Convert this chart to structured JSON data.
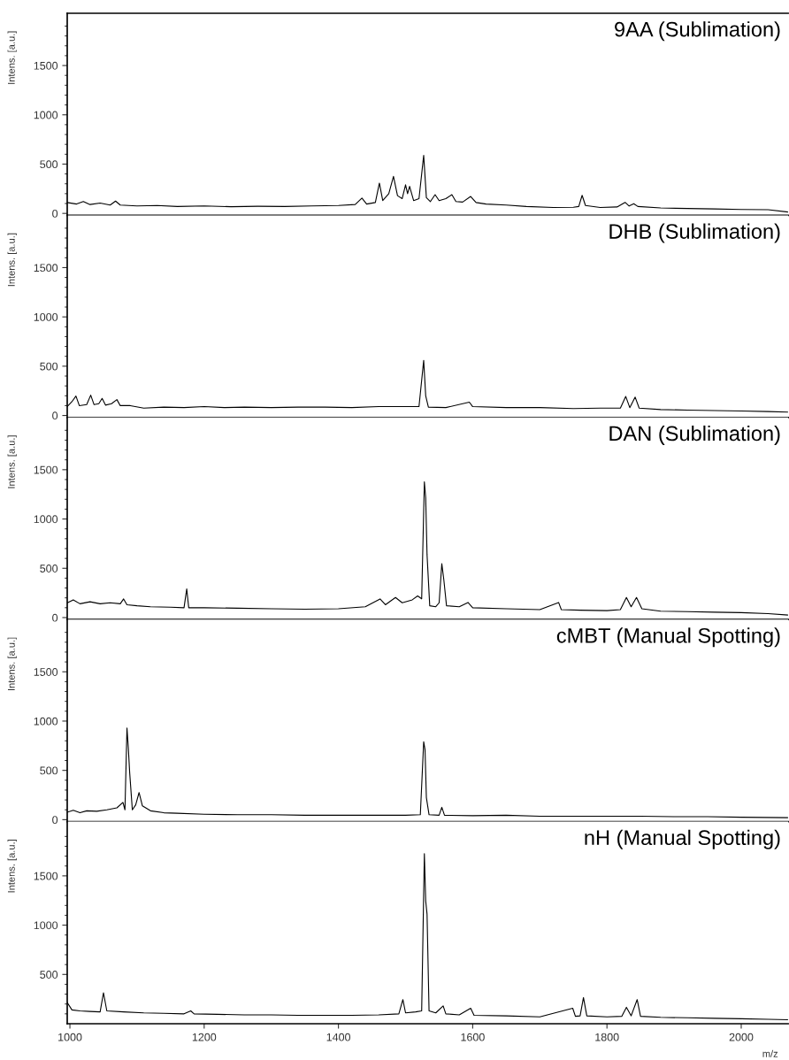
{
  "chart_data": [
    {
      "type": "line",
      "title": "9AA (Sublimation)",
      "ylabel": "Intens. [a.u.]",
      "tick_labels": "y",
      "grid": false,
      "legend": false,
      "xlim": [
        996,
        2070
      ],
      "ylim": [
        -20,
        2030
      ],
      "yticks": [
        0,
        {
          "value": 100,
          "label": null
        },
        {
          "value": 200,
          "label": null
        },
        {
          "value": 300,
          "label": null
        },
        {
          "value": 400,
          "label": null
        },
        500,
        {
          "value": 600,
          "label": null
        },
        {
          "value": 700,
          "label": null
        },
        {
          "value": 800,
          "label": null
        },
        {
          "value": 900,
          "label": null
        },
        1000,
        {
          "value": 1100,
          "label": null
        },
        {
          "value": 1200,
          "label": null
        },
        {
          "value": 1300,
          "label": null
        },
        {
          "value": 1400,
          "label": null
        },
        1500,
        {
          "value": 1600,
          "label": null
        },
        {
          "value": 1700,
          "label": null
        },
        {
          "value": 1800,
          "label": null
        },
        {
          "value": 1900,
          "label": null
        }
      ],
      "series": [
        {
          "color": "#000000",
          "x": [
            996,
            1010,
            1020,
            1030,
            1045,
            1060,
            1068,
            1075,
            1100,
            1130,
            1160,
            1200,
            1240,
            1280,
            1320,
            1360,
            1400,
            1425,
            1435,
            1442,
            1455,
            1461,
            1466,
            1475,
            1482,
            1488,
            1495,
            1500,
            1503,
            1506,
            1512,
            1520,
            1527,
            1531,
            1537,
            1544,
            1550,
            1560,
            1569,
            1575,
            1585,
            1597,
            1605,
            1620,
            1650,
            1680,
            1720,
            1750,
            1758,
            1763,
            1768,
            1790,
            1815,
            1827,
            1833,
            1840,
            1846,
            1880,
            1920,
            1960,
            2000,
            2040,
            2069
          ],
          "values": [
            110,
            95,
            120,
            90,
            105,
            85,
            125,
            85,
            75,
            80,
            70,
            75,
            68,
            72,
            70,
            75,
            80,
            90,
            155,
            95,
            110,
            307,
            130,
            200,
            375,
            180,
            150,
            290,
            200,
            274,
            130,
            150,
            588,
            160,
            120,
            190,
            130,
            150,
            190,
            120,
            115,
            172,
            110,
            95,
            85,
            70,
            60,
            62,
            70,
            183,
            80,
            60,
            65,
            112,
            75,
            98,
            70,
            55,
            50,
            45,
            40,
            37,
            14
          ]
        }
      ]
    },
    {
      "type": "line",
      "title": "DHB (Sublimation)",
      "ylabel": "Intens. [a.u.]",
      "tick_labels": "y",
      "grid": false,
      "legend": false,
      "xlim": [
        996,
        2070
      ],
      "ylim": [
        -20,
        2030
      ],
      "yticks": [
        0,
        {
          "value": 100,
          "label": null
        },
        {
          "value": 200,
          "label": null
        },
        {
          "value": 300,
          "label": null
        },
        {
          "value": 400,
          "label": null
        },
        500,
        {
          "value": 600,
          "label": null
        },
        {
          "value": 700,
          "label": null
        },
        {
          "value": 800,
          "label": null
        },
        {
          "value": 900,
          "label": null
        },
        1000,
        {
          "value": 1100,
          "label": null
        },
        {
          "value": 1200,
          "label": null
        },
        {
          "value": 1300,
          "label": null
        },
        {
          "value": 1400,
          "label": null
        },
        1500,
        {
          "value": 1600,
          "label": null
        },
        {
          "value": 1700,
          "label": null
        },
        {
          "value": 1800,
          "label": null
        },
        {
          "value": 1900,
          "label": null
        }
      ],
      "series": [
        {
          "color": "#000000",
          "x": [
            996,
            1003,
            1009,
            1014,
            1025,
            1031,
            1036,
            1043,
            1048,
            1053,
            1062,
            1070,
            1075,
            1090,
            1110,
            1140,
            1170,
            1200,
            1230,
            1260,
            1300,
            1340,
            1380,
            1420,
            1460,
            1500,
            1520,
            1527,
            1530,
            1534,
            1560,
            1595,
            1600,
            1650,
            1700,
            1750,
            1790,
            1820,
            1828,
            1834,
            1842,
            1848,
            1880,
            1920,
            1960,
            2000,
            2040,
            2069
          ],
          "values": [
            90,
            140,
            197,
            100,
            110,
            206,
            110,
            120,
            173,
            105,
            120,
            161,
            100,
            100,
            75,
            85,
            80,
            90,
            80,
            85,
            80,
            85,
            85,
            80,
            90,
            90,
            90,
            558,
            200,
            85,
            80,
            135,
            90,
            80,
            80,
            70,
            75,
            75,
            193,
            80,
            186,
            75,
            60,
            55,
            50,
            45,
            40,
            34
          ]
        }
      ]
    },
    {
      "type": "line",
      "title": "DAN (Sublimation)",
      "ylabel": "Intens. [a.u.]",
      "tick_labels": "y",
      "grid": false,
      "legend": false,
      "xlim": [
        996,
        2070
      ],
      "ylim": [
        -20,
        2030
      ],
      "yticks": [
        0,
        {
          "value": 100,
          "label": null
        },
        {
          "value": 200,
          "label": null
        },
        {
          "value": 300,
          "label": null
        },
        {
          "value": 400,
          "label": null
        },
        500,
        {
          "value": 600,
          "label": null
        },
        {
          "value": 700,
          "label": null
        },
        {
          "value": 800,
          "label": null
        },
        {
          "value": 900,
          "label": null
        },
        1000,
        {
          "value": 1100,
          "label": null
        },
        {
          "value": 1200,
          "label": null
        },
        {
          "value": 1300,
          "label": null
        },
        {
          "value": 1400,
          "label": null
        },
        1500,
        {
          "value": 1600,
          "label": null
        },
        {
          "value": 1700,
          "label": null
        },
        {
          "value": 1800,
          "label": null
        },
        {
          "value": 1900,
          "label": null
        }
      ],
      "series": [
        {
          "color": "#000000",
          "x": [
            996,
            1005,
            1015,
            1030,
            1045,
            1060,
            1075,
            1080,
            1085,
            1100,
            1120,
            1150,
            1170,
            1174,
            1177,
            1200,
            1250,
            1300,
            1350,
            1400,
            1440,
            1462,
            1470,
            1485,
            1495,
            1510,
            1518,
            1524,
            1528,
            1530,
            1532,
            1536,
            1545,
            1550,
            1554,
            1557,
            1561,
            1580,
            1593,
            1600,
            1650,
            1700,
            1728,
            1732,
            1760,
            1800,
            1820,
            1829,
            1836,
            1844,
            1852,
            1880,
            1920,
            1960,
            2000,
            2040,
            2069
          ],
          "values": [
            150,
            180,
            140,
            160,
            140,
            150,
            140,
            189,
            130,
            120,
            110,
            105,
            100,
            291,
            100,
            100,
            95,
            90,
            85,
            90,
            110,
            189,
            130,
            204,
            150,
            180,
            219,
            190,
            1377,
            1214,
            638,
            120,
            110,
            150,
            546,
            383,
            120,
            110,
            153,
            100,
            90,
            80,
            153,
            80,
            75,
            70,
            80,
            204,
            110,
            204,
            90,
            65,
            60,
            55,
            50,
            40,
            26
          ]
        }
      ]
    },
    {
      "type": "line",
      "title": "cMBT (Manual Spotting)",
      "ylabel": "Intens. [a.u.]",
      "tick_labels": "y",
      "grid": false,
      "legend": false,
      "xlim": [
        996,
        2070
      ],
      "ylim": [
        -20,
        2030
      ],
      "yticks": [
        0,
        {
          "value": 100,
          "label": null
        },
        {
          "value": 200,
          "label": null
        },
        {
          "value": 300,
          "label": null
        },
        {
          "value": 400,
          "label": null
        },
        500,
        {
          "value": 600,
          "label": null
        },
        {
          "value": 700,
          "label": null
        },
        {
          "value": 800,
          "label": null
        },
        {
          "value": 900,
          "label": null
        },
        1000,
        {
          "value": 1100,
          "label": null
        },
        {
          "value": 1200,
          "label": null
        },
        {
          "value": 1300,
          "label": null
        },
        {
          "value": 1400,
          "label": null
        },
        1500,
        {
          "value": 1600,
          "label": null
        },
        {
          "value": 1700,
          "label": null
        },
        {
          "value": 1800,
          "label": null
        },
        {
          "value": 1900,
          "label": null
        }
      ],
      "series": [
        {
          "color": "#000000",
          "x": [
            996,
            1005,
            1015,
            1025,
            1040,
            1055,
            1070,
            1079,
            1082,
            1085,
            1087,
            1089,
            1093,
            1098,
            1103,
            1108,
            1120,
            1140,
            1160,
            1200,
            1250,
            1300,
            1350,
            1400,
            1450,
            1500,
            1522,
            1527,
            1529,
            1531,
            1535,
            1550,
            1554,
            1558,
            1600,
            1650,
            1700,
            1750,
            1800,
            1850,
            1900,
            1950,
            2000,
            2069
          ],
          "values": [
            75,
            95,
            70,
            90,
            85,
            100,
            120,
            175,
            100,
            930,
            730,
            480,
            100,
            150,
            275,
            140,
            90,
            70,
            65,
            55,
            50,
            50,
            45,
            45,
            45,
            45,
            50,
            790,
            710,
            225,
            50,
            45,
            125,
            45,
            40,
            45,
            35,
            35,
            35,
            35,
            30,
            30,
            25,
            20
          ]
        }
      ]
    },
    {
      "type": "line",
      "title": "nH (Manual Spotting)",
      "ylabel": "Intens. [a.u.]",
      "xlabel": "m/z",
      "grid": false,
      "legend": false,
      "xlim": [
        996,
        2070
      ],
      "ylim": [
        0,
        2050
      ],
      "xticks": [
        1000,
        1200,
        1400,
        1600,
        1800,
        2000
      ],
      "yticks": [
        {
          "value": 100,
          "label": null
        },
        {
          "value": 200,
          "label": null
        },
        {
          "value": 300,
          "label": null
        },
        {
          "value": 400,
          "label": null
        },
        500,
        {
          "value": 600,
          "label": null
        },
        {
          "value": 700,
          "label": null
        },
        {
          "value": 800,
          "label": null
        },
        {
          "value": 900,
          "label": null
        },
        1000,
        {
          "value": 1100,
          "label": null
        },
        {
          "value": 1200,
          "label": null
        },
        {
          "value": 1300,
          "label": null
        },
        {
          "value": 1400,
          "label": null
        },
        1500,
        {
          "value": 1600,
          "label": null
        },
        {
          "value": 1700,
          "label": null
        },
        {
          "value": 1800,
          "label": null
        },
        {
          "value": 1900,
          "label": null
        }
      ],
      "series": [
        {
          "color": "#000000",
          "x": [
            996,
            1003,
            1015,
            1030,
            1045,
            1050,
            1055,
            1080,
            1110,
            1140,
            1170,
            1180,
            1185,
            1220,
            1260,
            1300,
            1340,
            1380,
            1420,
            1460,
            1490,
            1496,
            1500,
            1515,
            1524,
            1528,
            1530,
            1532,
            1535,
            1545,
            1556,
            1560,
            1580,
            1597,
            1602,
            1650,
            1700,
            1749,
            1753,
            1760,
            1765,
            1770,
            1800,
            1822,
            1829,
            1836,
            1845,
            1850,
            1880,
            1920,
            1960,
            2000,
            2040,
            2069
          ],
          "values": [
            216,
            140,
            130,
            125,
            120,
            314,
            130,
            120,
            110,
            105,
            100,
            130,
            100,
            95,
            90,
            90,
            85,
            85,
            85,
            90,
            100,
            245,
            110,
            120,
            130,
            1725,
            1245,
            1112,
            130,
            110,
            181,
            100,
            90,
            157,
            85,
            80,
            70,
            157,
            75,
            80,
            265,
            80,
            70,
            75,
            167,
            80,
            245,
            75,
            65,
            60,
            55,
            50,
            45,
            40
          ]
        }
      ]
    }
  ]
}
